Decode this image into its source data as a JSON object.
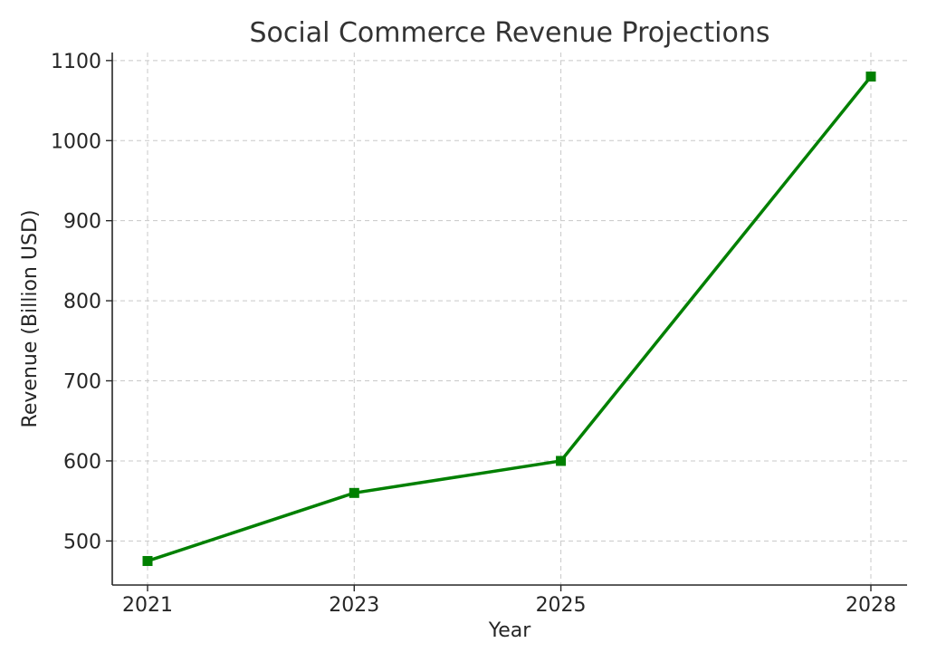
{
  "chart_data": {
    "type": "line",
    "title": "Social Commerce Revenue Projections",
    "xlabel": "Year",
    "ylabel": "Revenue (Billion USD)",
    "categories": [
      "2021",
      "2023",
      "2025",
      "2028"
    ],
    "series": [
      {
        "values": [
          475,
          560,
          600,
          1080
        ],
        "color": "#008000",
        "marker": "square"
      }
    ],
    "yticks": [
      500,
      600,
      700,
      800,
      900,
      1000,
      1100
    ],
    "ylim": [
      445,
      1110
    ],
    "grid": true
  }
}
